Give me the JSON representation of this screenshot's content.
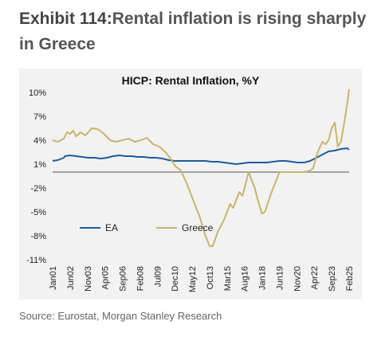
{
  "header": {
    "exhibit_label": "Exhibit 114:",
    "title_text": "Rental inflation is rising sharply in Greece"
  },
  "footer": {
    "source": "Source: Eurostat, Morgan Stanley Research"
  },
  "chart_data": {
    "type": "line",
    "title": "HICP: Rental Inflation, %Y",
    "xlabel": "",
    "ylabel": "",
    "ylim": [
      -11,
      10
    ],
    "yticks": [
      10,
      7,
      4,
      1,
      -2,
      -5,
      -8,
      -11
    ],
    "ytick_labels": [
      "10%",
      "7%",
      "4%",
      "1%",
      "-2%",
      "-5%",
      "-8%",
      "-11%"
    ],
    "xlim": [
      "2001-01",
      "2025-02"
    ],
    "xtick_labels": [
      "Jan01",
      "Jun02",
      "Nov03",
      "Apr05",
      "Sep06",
      "Feb08",
      "Jul09",
      "Dec10",
      "May12",
      "Oct13",
      "Mar15",
      "Aug16",
      "Jan18",
      "Jun19",
      "Nov20",
      "Apr22",
      "Sep23",
      "Feb25"
    ],
    "zero_line": 0,
    "grid": false,
    "legend_position": "lower-left",
    "series": [
      {
        "name": "EA",
        "color": "#1f5c99",
        "points": [
          [
            "2001-01",
            1.4
          ],
          [
            "2001-06",
            1.5
          ],
          [
            "2001-12",
            1.8
          ],
          [
            "2002-01",
            2.0
          ],
          [
            "2002-06",
            2.1
          ],
          [
            "2002-12",
            2.0
          ],
          [
            "2003-06",
            1.9
          ],
          [
            "2003-12",
            1.8
          ],
          [
            "2004-06",
            1.8
          ],
          [
            "2004-12",
            1.7
          ],
          [
            "2005-06",
            1.8
          ],
          [
            "2005-12",
            2.0
          ],
          [
            "2006-06",
            2.1
          ],
          [
            "2006-12",
            2.0
          ],
          [
            "2007-06",
            2.0
          ],
          [
            "2007-12",
            1.9
          ],
          [
            "2008-06",
            1.9
          ],
          [
            "2008-12",
            1.8
          ],
          [
            "2009-06",
            1.8
          ],
          [
            "2009-12",
            1.7
          ],
          [
            "2010-06",
            1.5
          ],
          [
            "2010-12",
            1.4
          ],
          [
            "2011-06",
            1.4
          ],
          [
            "2011-12",
            1.4
          ],
          [
            "2012-06",
            1.4
          ],
          [
            "2012-12",
            1.4
          ],
          [
            "2013-06",
            1.4
          ],
          [
            "2013-12",
            1.3
          ],
          [
            "2014-06",
            1.3
          ],
          [
            "2014-12",
            1.2
          ],
          [
            "2015-06",
            1.1
          ],
          [
            "2015-12",
            1.0
          ],
          [
            "2016-06",
            1.1
          ],
          [
            "2016-12",
            1.2
          ],
          [
            "2017-06",
            1.2
          ],
          [
            "2017-12",
            1.2
          ],
          [
            "2018-06",
            1.2
          ],
          [
            "2018-12",
            1.3
          ],
          [
            "2019-06",
            1.4
          ],
          [
            "2019-12",
            1.4
          ],
          [
            "2020-06",
            1.3
          ],
          [
            "2020-12",
            1.2
          ],
          [
            "2021-06",
            1.2
          ],
          [
            "2021-12",
            1.4
          ],
          [
            "2022-06",
            1.8
          ],
          [
            "2022-12",
            2.2
          ],
          [
            "2023-06",
            2.6
          ],
          [
            "2023-12",
            2.7
          ],
          [
            "2024-06",
            2.9
          ],
          [
            "2024-12",
            3.0
          ],
          [
            "2025-02",
            2.8
          ]
        ]
      },
      {
        "name": "Greece",
        "color": "#c8b46e",
        "points": [
          [
            "2001-01",
            4.0
          ],
          [
            "2001-06",
            3.8
          ],
          [
            "2001-12",
            4.2
          ],
          [
            "2002-03",
            5.0
          ],
          [
            "2002-06",
            4.8
          ],
          [
            "2002-09",
            5.2
          ],
          [
            "2002-12",
            4.5
          ],
          [
            "2003-04",
            5.0
          ],
          [
            "2003-09",
            4.6
          ],
          [
            "2004-03",
            5.5
          ],
          [
            "2004-09",
            5.4
          ],
          [
            "2005-03",
            4.8
          ],
          [
            "2005-09",
            4.0
          ],
          [
            "2006-03",
            3.8
          ],
          [
            "2006-09",
            4.0
          ],
          [
            "2007-03",
            4.2
          ],
          [
            "2007-09",
            3.8
          ],
          [
            "2008-03",
            4.0
          ],
          [
            "2008-09",
            4.3
          ],
          [
            "2009-03",
            3.5
          ],
          [
            "2009-09",
            3.2
          ],
          [
            "2010-03",
            2.5
          ],
          [
            "2010-09",
            1.5
          ],
          [
            "2010-12",
            0.8
          ],
          [
            "2011-06",
            0.2
          ],
          [
            "2011-12",
            -1.5
          ],
          [
            "2012-06",
            -3.5
          ],
          [
            "2012-12",
            -5.5
          ],
          [
            "2013-06",
            -8.0
          ],
          [
            "2013-10",
            -9.3
          ],
          [
            "2014-01",
            -9.3
          ],
          [
            "2014-06",
            -7.5
          ],
          [
            "2014-12",
            -6.0
          ],
          [
            "2015-06",
            -4.0
          ],
          [
            "2015-09",
            -4.5
          ],
          [
            "2016-03",
            -2.5
          ],
          [
            "2016-06",
            -3.0
          ],
          [
            "2016-09",
            -1.5
          ],
          [
            "2016-12",
            0.0
          ],
          [
            "2017-03",
            -1.0
          ],
          [
            "2017-06",
            -2.0
          ],
          [
            "2017-09",
            -3.5
          ],
          [
            "2018-01",
            -5.2
          ],
          [
            "2018-04",
            -5.0
          ],
          [
            "2018-09",
            -3.0
          ],
          [
            "2019-03",
            -1.0
          ],
          [
            "2019-06",
            0.0
          ],
          [
            "2019-12",
            0.0
          ],
          [
            "2020-06",
            0.0
          ],
          [
            "2020-12",
            0.0
          ],
          [
            "2021-06",
            0.0
          ],
          [
            "2021-12",
            0.2
          ],
          [
            "2022-03",
            0.5
          ],
          [
            "2022-06",
            2.0
          ],
          [
            "2022-09",
            3.0
          ],
          [
            "2022-12",
            3.8
          ],
          [
            "2023-03",
            3.5
          ],
          [
            "2023-06",
            4.0
          ],
          [
            "2023-09",
            5.5
          ],
          [
            "2023-12",
            6.2
          ],
          [
            "2024-03",
            3.2
          ],
          [
            "2024-06",
            3.8
          ],
          [
            "2024-09",
            6.0
          ],
          [
            "2024-12",
            8.5
          ],
          [
            "2025-02",
            10.4
          ]
        ]
      }
    ]
  }
}
